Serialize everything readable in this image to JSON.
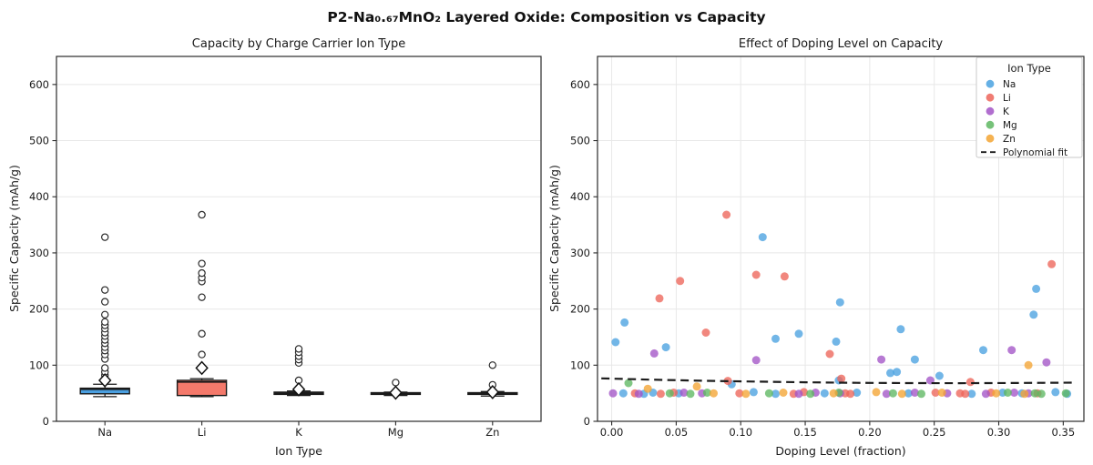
{
  "figure": {
    "title": "P2-Na₀.₆₇MnO₂ Layered Oxide: Composition vs Capacity"
  },
  "palette": {
    "Na": "#4aa2e0",
    "Li": "#ed655a",
    "K": "#a355c7",
    "Mg": "#5eb762",
    "Zn": "#f3a433",
    "fit": "#1c1c1c",
    "grid": "#e8e8e8",
    "spine": "#2a2a2a"
  },
  "chart_data": [
    {
      "type": "box",
      "title": "Capacity by Charge Carrier Ion Type",
      "xlabel": "Ion Type",
      "ylabel": "Specific Capacity (mAh/g)",
      "ylim": [
        0,
        650
      ],
      "yticks": [
        0,
        100,
        200,
        300,
        400,
        500,
        600
      ],
      "categories": [
        "Na",
        "Li",
        "K",
        "Mg",
        "Zn"
      ],
      "grid": "horizontal",
      "mean_marker": "diamond",
      "boxes": [
        {
          "label": "Na",
          "color": "#4a9fe0",
          "whisker_low": 44,
          "q1": 49,
          "median": 57,
          "q3": 59,
          "whisker_high": 66,
          "mean": 73,
          "outliers": [
            82,
            88,
            95,
            111,
            119,
            126,
            132,
            139,
            145,
            152,
            158,
            165,
            171,
            177,
            190,
            213,
            234,
            328
          ]
        },
        {
          "label": "Li",
          "color": "#f4796b",
          "whisker_low": 44,
          "q1": 46,
          "median": 70,
          "q3": 73,
          "whisker_high": 76,
          "mean": 95,
          "outliers": [
            119,
            156,
            221,
            249,
            256,
            264,
            281,
            368
          ]
        },
        {
          "label": "K",
          "color": "#a355c7",
          "whisker_low": 46,
          "q1": 48,
          "median": 50,
          "q3": 52,
          "whisker_high": 54,
          "mean": 57,
          "outliers": [
            73,
            104,
            110,
            116,
            123,
            129
          ]
        },
        {
          "label": "Mg",
          "color": "#5eb762",
          "whisker_low": 46,
          "q1": 48,
          "median": 50,
          "q3": 51,
          "whisker_high": 52,
          "mean": 51,
          "outliers": [
            69
          ]
        },
        {
          "label": "Zn",
          "color": "#f3a433",
          "whisker_low": 45,
          "q1": 48,
          "median": 50,
          "q3": 51,
          "whisker_high": 53,
          "mean": 52,
          "outliers": [
            65,
            100
          ]
        }
      ]
    },
    {
      "type": "scatter",
      "title": "Effect of Doping Level on Capacity",
      "xlabel": "Doping Level (fraction)",
      "ylabel": "Specific Capacity (mAh/g)",
      "xlim": [
        -0.011,
        0.366
      ],
      "ylim": [
        0,
        650
      ],
      "xtick_values": [
        0.0,
        0.05,
        0.1,
        0.15,
        0.2,
        0.25,
        0.3,
        0.35
      ],
      "xtick_labels": [
        "0.00",
        "0.05",
        "0.10",
        "0.15",
        "0.20",
        "0.25",
        "0.30",
        "0.35"
      ],
      "yticks": [
        0,
        100,
        200,
        300,
        400,
        500,
        600
      ],
      "grid": "both",
      "legend_title": "Ion Type",
      "legend_position": "upper right",
      "series": [
        {
          "name": "Na",
          "color": "#4aa2e0",
          "points": [
            [
              0.003,
              141
            ],
            [
              0.009,
              50
            ],
            [
              0.01,
              176
            ],
            [
              0.025,
              49
            ],
            [
              0.032,
              51
            ],
            [
              0.042,
              132
            ],
            [
              0.052,
              50
            ],
            [
              0.093,
              66
            ],
            [
              0.11,
              52
            ],
            [
              0.117,
              328
            ],
            [
              0.127,
              147
            ],
            [
              0.127,
              49
            ],
            [
              0.145,
              156
            ],
            [
              0.165,
              50
            ],
            [
              0.174,
              142
            ],
            [
              0.176,
              73
            ],
            [
              0.177,
              212
            ],
            [
              0.19,
              51
            ],
            [
              0.216,
              86
            ],
            [
              0.221,
              88
            ],
            [
              0.224,
              164
            ],
            [
              0.23,
              50
            ],
            [
              0.235,
              110
            ],
            [
              0.254,
              81
            ],
            [
              0.279,
              49
            ],
            [
              0.288,
              127
            ],
            [
              0.303,
              51
            ],
            [
              0.318,
              50
            ],
            [
              0.327,
              190
            ],
            [
              0.329,
              236
            ],
            [
              0.344,
              52
            ],
            [
              0.353,
              49
            ]
          ]
        },
        {
          "name": "Li",
          "color": "#ed655a",
          "points": [
            [
              0.018,
              50
            ],
            [
              0.037,
              219
            ],
            [
              0.038,
              49
            ],
            [
              0.048,
              51
            ],
            [
              0.053,
              250
            ],
            [
              0.073,
              158
            ],
            [
              0.089,
              368
            ],
            [
              0.09,
              72
            ],
            [
              0.099,
              50
            ],
            [
              0.112,
              261
            ],
            [
              0.134,
              258
            ],
            [
              0.141,
              49
            ],
            [
              0.149,
              52
            ],
            [
              0.169,
              120
            ],
            [
              0.178,
              76
            ],
            [
              0.181,
              50
            ],
            [
              0.185,
              49
            ],
            [
              0.251,
              51
            ],
            [
              0.27,
              50
            ],
            [
              0.274,
              49
            ],
            [
              0.278,
              70
            ],
            [
              0.294,
              51
            ],
            [
              0.33,
              50
            ],
            [
              0.341,
              280
            ]
          ]
        },
        {
          "name": "K",
          "color": "#a355c7",
          "points": [
            [
              0.001,
              50
            ],
            [
              0.021,
              49
            ],
            [
              0.033,
              121
            ],
            [
              0.056,
              51
            ],
            [
              0.07,
              50
            ],
            [
              0.112,
              109
            ],
            [
              0.145,
              49
            ],
            [
              0.158,
              51
            ],
            [
              0.177,
              50
            ],
            [
              0.209,
              110
            ],
            [
              0.213,
              49
            ],
            [
              0.235,
              51
            ],
            [
              0.247,
              73
            ],
            [
              0.26,
              50
            ],
            [
              0.29,
              49
            ],
            [
              0.31,
              127
            ],
            [
              0.312,
              51
            ],
            [
              0.323,
              50
            ],
            [
              0.337,
              105
            ]
          ]
        },
        {
          "name": "Mg",
          "color": "#5eb762",
          "points": [
            [
              0.013,
              68
            ],
            [
              0.045,
              50
            ],
            [
              0.061,
              49
            ],
            [
              0.074,
              51
            ],
            [
              0.122,
              50
            ],
            [
              0.154,
              49
            ],
            [
              0.176,
              51
            ],
            [
              0.218,
              50
            ],
            [
              0.24,
              49
            ],
            [
              0.307,
              51
            ],
            [
              0.328,
              50
            ],
            [
              0.333,
              49
            ],
            [
              0.352,
              50
            ]
          ]
        },
        {
          "name": "Zn",
          "color": "#f3a433",
          "points": [
            [
              0.028,
              58
            ],
            [
              0.066,
              62
            ],
            [
              0.079,
              50
            ],
            [
              0.104,
              49
            ],
            [
              0.133,
              51
            ],
            [
              0.172,
              50
            ],
            [
              0.205,
              52
            ],
            [
              0.225,
              49
            ],
            [
              0.256,
              51
            ],
            [
              0.298,
              50
            ],
            [
              0.32,
              49
            ],
            [
              0.323,
              100
            ]
          ]
        }
      ],
      "fit": {
        "label": "Polynomial fit",
        "color": "#1c1c1c",
        "style": "dashed",
        "points": [
          [
            -0.008,
            76.5
          ],
          [
            0.03,
            74.3
          ],
          [
            0.07,
            72.3
          ],
          [
            0.11,
            70.8
          ],
          [
            0.15,
            69.5
          ],
          [
            0.19,
            68.6
          ],
          [
            0.23,
            68.1
          ],
          [
            0.27,
            67.9
          ],
          [
            0.31,
            68.2
          ],
          [
            0.36,
            68.9
          ]
        ]
      }
    }
  ]
}
